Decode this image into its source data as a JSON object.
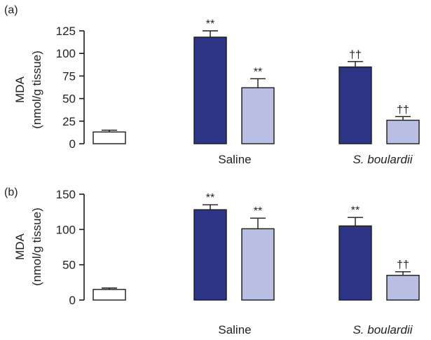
{
  "chart_data": [
    {
      "type": "bar",
      "panel_label": "(a)",
      "ylabel": [
        "MDA",
        "(nmol/g tissue)"
      ],
      "ylim": [
        0,
        125
      ],
      "yticks": [
        0,
        25,
        50,
        75,
        100,
        125
      ],
      "groups": [
        "Saline",
        "S. boulardii"
      ],
      "bars": [
        {
          "value": 13,
          "err": 2,
          "fill": "white",
          "sig": ""
        },
        {
          "value": 118,
          "err": 7,
          "fill": "dark",
          "sig": "**"
        },
        {
          "value": 62,
          "err": 10,
          "fill": "light",
          "sig": "**"
        },
        {
          "value": 85,
          "err": 6,
          "fill": "dark",
          "sig": "††"
        },
        {
          "value": 26,
          "err": 4,
          "fill": "light",
          "sig": "††"
        }
      ]
    },
    {
      "type": "bar",
      "panel_label": "(b)",
      "ylabel": [
        "MDA",
        "(nmol/g tissue)"
      ],
      "ylim": [
        0,
        150
      ],
      "yticks": [
        0,
        50,
        100,
        150
      ],
      "groups": [
        "Saline",
        "S. boulardii"
      ],
      "bars": [
        {
          "value": 15,
          "err": 2,
          "fill": "white",
          "sig": ""
        },
        {
          "value": 128,
          "err": 7,
          "fill": "dark",
          "sig": "**"
        },
        {
          "value": 101,
          "err": 15,
          "fill": "light",
          "sig": "**"
        },
        {
          "value": 105,
          "err": 12,
          "fill": "dark",
          "sig": "**"
        },
        {
          "value": 35,
          "err": 5,
          "fill": "light",
          "sig": "††"
        }
      ]
    }
  ],
  "colors": {
    "dark": "#2e3485",
    "light": "#b8bfe2",
    "white": "#ffffff",
    "stroke": "#1a1a1a"
  }
}
